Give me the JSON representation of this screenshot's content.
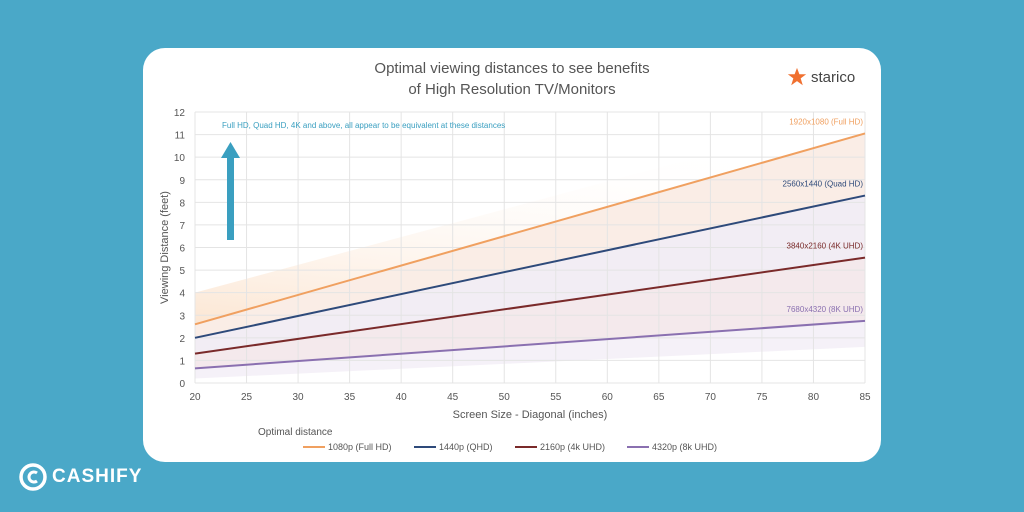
{
  "chart_data": {
    "type": "line",
    "title": "Optimal viewing distances to see benefits of High Resolution TV/Monitors",
    "title_lines": [
      "Optimal viewing distances to see benefits",
      "of High Resolution TV/Monitors"
    ],
    "xlabel": "Screen Size - Diagonal (inches)",
    "ylabel": "Viewing Distance (feet)",
    "xlim": [
      20,
      85
    ],
    "ylim": [
      0,
      12
    ],
    "xticks": [
      20,
      25,
      30,
      35,
      40,
      45,
      50,
      55,
      60,
      65,
      70,
      75,
      80,
      85
    ],
    "yticks": [
      0,
      1,
      2,
      3,
      4,
      5,
      6,
      7,
      8,
      9,
      10,
      11,
      12
    ],
    "grid": true,
    "legend_title": "Optimal distance",
    "legend_placement": "bottom",
    "annotation": "Full HD, Quad HD, 4K and above, all appear to be equivalent at these distances",
    "series": [
      {
        "name": "1080p (Full HD)",
        "end_label": "1920x1080 (Full HD)",
        "color": "#f0a060",
        "x": [
          20,
          85
        ],
        "y": [
          2.6,
          11.05
        ]
      },
      {
        "name": "1440p (QHD)",
        "end_label": "2560x1440 (Quad HD)",
        "color": "#2e4a7a",
        "x": [
          20,
          85
        ],
        "y": [
          2.0,
          8.3
        ]
      },
      {
        "name": "2160p (4k UHD)",
        "end_label": "3840x2160 (4K UHD)",
        "color": "#7a2a2a",
        "x": [
          20,
          85
        ],
        "y": [
          1.3,
          5.55
        ]
      },
      {
        "name": "4320p (8k UHD)",
        "end_label": "7680x4320 (8K UHD)",
        "color": "#8a70b0",
        "x": [
          20,
          85
        ],
        "y": [
          0.65,
          2.75
        ]
      }
    ]
  },
  "brand": {
    "chart_logo": "starico",
    "watermark": "CASHIFY"
  },
  "colors": {
    "background": "#4aa8c8",
    "arrow": "#3a9fc0",
    "annotation": "#3a9fc0"
  }
}
